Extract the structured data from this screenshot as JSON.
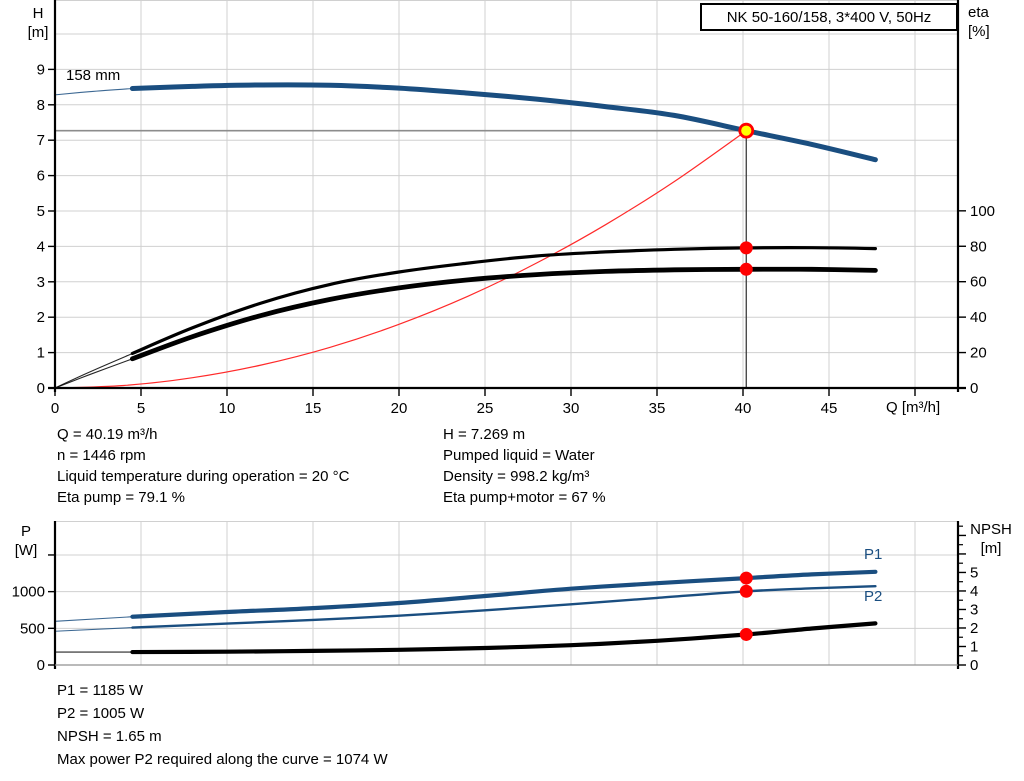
{
  "title_box": "NK 50-160/158, 3*400 V, 50Hz",
  "top_chart": {
    "y_axis_title_1": "H",
    "y_axis_title_2": "[m]",
    "y2_axis_title_1": "eta",
    "y2_axis_title_2": "[%]",
    "x_axis_title": "Q [m³/h]",
    "curve_label": "158 mm"
  },
  "bottom_chart": {
    "y_axis_title_1": "P",
    "y_axis_title_2": "[W]",
    "y2_axis_title_1": "NPSH",
    "y2_axis_title_2": "[m]",
    "p1_label": "P1",
    "p2_label": "P2"
  },
  "info_top_left": [
    "Q = 40.19 m³/h",
    "n = 1446 rpm",
    "Liquid temperature during operation = 20 °C",
    "Eta pump = 79.1 %"
  ],
  "info_top_right": [
    "H = 7.269 m",
    "Pumped liquid = Water",
    "Density = 998.2 kg/m³",
    "Eta pump+motor = 67 %"
  ],
  "info_bottom": [
    "P1 = 1185 W",
    "P2 = 1005 W",
    "NPSH = 1.65 m",
    "Max power P2 required along the curve = 1074 W"
  ],
  "colors": {
    "curve_blue": "#1a4e80",
    "curve_black": "#000000",
    "system_red": "#ff2a2a",
    "duty_fill": "#ffff00",
    "duty_ring": "#ff0000",
    "dot_red": "#ff0000",
    "grid": "#d0d0d0",
    "axis": "#000000",
    "cross_v": "#3c3c3c",
    "cross_h": "#8c8c8c",
    "frame_weak": "#909090"
  },
  "chart_data": [
    {
      "type": "line",
      "name": "pump-performance",
      "title": "NK 50-160/158, 3*400 V, 50Hz",
      "xlabel": "Q [m³/h]",
      "ylabel": "H [m]",
      "y2label": "eta [%]",
      "xlim": [
        0,
        52.5
      ],
      "ylim": [
        0,
        10.96
      ],
      "y2lim": [
        0,
        219
      ],
      "xgrid": [
        5,
        10,
        15,
        20,
        25,
        30,
        35,
        40,
        45,
        50
      ],
      "ygrid": [
        1,
        2,
        3,
        4,
        5,
        6,
        7,
        8,
        9,
        10
      ],
      "xticks": {
        "values": [
          0,
          5,
          10,
          15,
          20,
          25,
          30,
          35,
          40,
          45,
          50
        ],
        "labels": [
          "0",
          "5",
          "10",
          "15",
          "20",
          "25",
          "30",
          "35",
          "40",
          "45",
          ""
        ]
      },
      "yticks": {
        "values": [
          0,
          1,
          2,
          3,
          4,
          5,
          6,
          7,
          8,
          9
        ],
        "labels": [
          "0",
          "1",
          "2",
          "3",
          "4",
          "5",
          "6",
          "7",
          "8",
          "9"
        ]
      },
      "y2ticks": {
        "values": [
          0,
          20,
          40,
          60,
          80,
          100
        ],
        "labels": [
          "0",
          "20",
          "40",
          "60",
          "80",
          "100"
        ]
      },
      "crosshair": {
        "x": 40.19,
        "y": 7.269
      },
      "series": [
        {
          "name": "system-curve",
          "axis": "y",
          "color": "#ff2a2a",
          "width": 1.2,
          "points": [
            [
              0,
              0
            ],
            [
              4,
              0.07
            ],
            [
              8,
              0.29
            ],
            [
              12,
              0.65
            ],
            [
              16,
              1.15
            ],
            [
              20,
              1.8
            ],
            [
              24,
              2.59
            ],
            [
              28,
              3.53
            ],
            [
              32,
              4.61
            ],
            [
              36,
              5.83
            ],
            [
              40.19,
              7.269
            ]
          ]
        },
        {
          "name": "eta-pump",
          "axis": "y2",
          "color": "#000000",
          "width": 3.2,
          "thin_until": 4.5,
          "points": [
            [
              0,
              0
            ],
            [
              2,
              9
            ],
            [
              4.5,
              19.5
            ],
            [
              8,
              34
            ],
            [
              12,
              48
            ],
            [
              16,
              58.5
            ],
            [
              20,
              65.5
            ],
            [
              24,
              70.5
            ],
            [
              28,
              74.5
            ],
            [
              32,
              76.8
            ],
            [
              36,
              78.3
            ],
            [
              40.19,
              79.1
            ],
            [
              44,
              79.2
            ],
            [
              47.7,
              78.7
            ]
          ]
        },
        {
          "name": "eta-pump-motor",
          "axis": "y2",
          "color": "#000000",
          "width": 4.8,
          "thin_until": 4.5,
          "points": [
            [
              0,
              0
            ],
            [
              2,
              7.5
            ],
            [
              4.5,
              16.5
            ],
            [
              8,
              29
            ],
            [
              12,
              41
            ],
            [
              16,
              50
            ],
            [
              20,
              56.5
            ],
            [
              24,
              61
            ],
            [
              28,
              64
            ],
            [
              32,
              65.8
            ],
            [
              36,
              66.7
            ],
            [
              40.19,
              67
            ],
            [
              44,
              67
            ],
            [
              47.7,
              66.4
            ]
          ]
        },
        {
          "name": "head-158mm",
          "axis": "y",
          "color": "#1a4e80",
          "width": 5,
          "thin_until": 4.5,
          "points": [
            [
              0,
              8.28
            ],
            [
              2,
              8.37
            ],
            [
              4.5,
              8.46
            ],
            [
              8,
              8.52
            ],
            [
              12,
              8.56
            ],
            [
              16,
              8.55
            ],
            [
              20,
              8.47
            ],
            [
              24,
              8.33
            ],
            [
              28,
              8.16
            ],
            [
              32,
              7.95
            ],
            [
              36,
              7.7
            ],
            [
              40.19,
              7.269
            ],
            [
              44,
              6.88
            ],
            [
              47.7,
              6.45
            ]
          ]
        }
      ],
      "markers": [
        {
          "name": "duty-point",
          "style": "duty",
          "x": 40.19,
          "axis": "y",
          "v": 7.269
        },
        {
          "name": "eta-pump-point",
          "style": "dot",
          "x": 40.19,
          "axis": "y2",
          "v": 79.1
        },
        {
          "name": "eta-pump-motor-point",
          "style": "dot",
          "x": 40.19,
          "axis": "y2",
          "v": 67
        }
      ]
    },
    {
      "type": "line",
      "name": "power-npsh",
      "ylabel": "P [W]",
      "y2label": "NPSH [m]",
      "xlim": [
        0,
        52.5
      ],
      "ylim": [
        0,
        1963
      ],
      "y2lim": [
        0,
        7.78
      ],
      "xgrid": [
        5,
        10,
        15,
        20,
        25,
        30,
        35,
        40,
        45,
        50
      ],
      "ygrid": [
        500,
        1000,
        1500
      ],
      "xticks": {
        "values": [],
        "labels": []
      },
      "yticks": {
        "values": [
          0,
          500,
          1000,
          1500
        ],
        "labels": [
          "0",
          "500",
          "1000",
          ""
        ]
      },
      "y2ticks": {
        "values": [
          0,
          1,
          2,
          3,
          4,
          5,
          6,
          7
        ],
        "labels": [
          "0",
          "1",
          "2",
          "3",
          "4",
          "5",
          "",
          ""
        ]
      },
      "y2minor": [
        0.5,
        1.5,
        2.5,
        3.5,
        4.5,
        5.5,
        6.5,
        7.5
      ],
      "series": [
        {
          "name": "p1",
          "axis": "y",
          "color": "#1a4e80",
          "width": 4.2,
          "thin_until": 4.5,
          "points": [
            [
              0,
              595
            ],
            [
              4.5,
              658
            ],
            [
              10,
              722
            ],
            [
              15,
              775
            ],
            [
              20,
              845
            ],
            [
              25,
              940
            ],
            [
              30,
              1040
            ],
            [
              35,
              1115
            ],
            [
              40.19,
              1185
            ],
            [
              44,
              1235
            ],
            [
              47.7,
              1270
            ]
          ]
        },
        {
          "name": "p2",
          "axis": "y",
          "color": "#1a4e80",
          "width": 2.4,
          "thin_until": 4.5,
          "points": [
            [
              0,
              460
            ],
            [
              4.5,
              510
            ],
            [
              10,
              565
            ],
            [
              15,
              615
            ],
            [
              20,
              672
            ],
            [
              25,
              745
            ],
            [
              30,
              828
            ],
            [
              35,
              915
            ],
            [
              40.19,
              1005
            ],
            [
              44,
              1045
            ],
            [
              47.7,
              1074
            ]
          ]
        },
        {
          "name": "npsh",
          "axis": "y2",
          "color": "#000000",
          "width": 4.2,
          "thin_until": 4.5,
          "points": [
            [
              0,
              0.7
            ],
            [
              4.5,
              0.7
            ],
            [
              10,
              0.72
            ],
            [
              15,
              0.76
            ],
            [
              20,
              0.82
            ],
            [
              25,
              0.92
            ],
            [
              30,
              1.07
            ],
            [
              35,
              1.31
            ],
            [
              40.19,
              1.65
            ],
            [
              44,
              1.97
            ],
            [
              47.7,
              2.25
            ]
          ]
        }
      ],
      "markers": [
        {
          "name": "p1-point",
          "style": "dot",
          "x": 40.19,
          "axis": "y",
          "v": 1185
        },
        {
          "name": "p2-point",
          "style": "dot",
          "x": 40.19,
          "axis": "y",
          "v": 1005
        },
        {
          "name": "npsh-point",
          "style": "dot",
          "x": 40.19,
          "axis": "y2",
          "v": 1.65
        }
      ]
    }
  ]
}
